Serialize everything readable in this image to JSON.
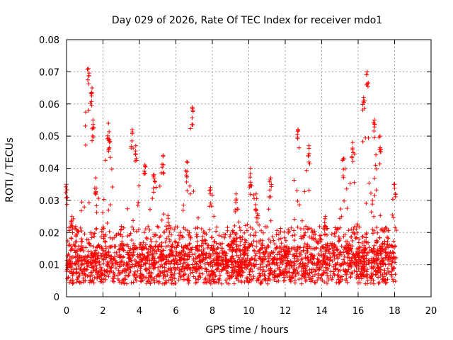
{
  "chart_data": {
    "type": "scatter",
    "title": "Day 029 of 2026, Rate Of TEC Index for receiver mdo1",
    "xlabel": "GPS time / hours",
    "ylabel": "ROTI / TECUs",
    "xlim": [
      0,
      20
    ],
    "ylim": [
      0,
      0.08
    ],
    "x_ticks": [
      "0",
      "2",
      "4",
      "6",
      "8",
      "10",
      "12",
      "14",
      "16",
      "18",
      "20"
    ],
    "y_ticks": [
      "0",
      "0.01",
      "0.02",
      "0.03",
      "0.04",
      "0.05",
      "0.06",
      "0.07",
      "0.08"
    ],
    "grid": true,
    "marker": "+",
    "color": "#ff0000",
    "data_range_hours": [
      0,
      18.1
    ],
    "baseline_roti": 0.01,
    "peaks": [
      {
        "x": 0.0,
        "y": 0.035
      },
      {
        "x": 0.3,
        "y": 0.025
      },
      {
        "x": 1.2,
        "y": 0.071
      },
      {
        "x": 1.4,
        "y": 0.065
      },
      {
        "x": 1.45,
        "y": 0.055
      },
      {
        "x": 1.6,
        "y": 0.037
      },
      {
        "x": 2.3,
        "y": 0.054
      },
      {
        "x": 2.35,
        "y": 0.049
      },
      {
        "x": 3.6,
        "y": 0.052
      },
      {
        "x": 3.8,
        "y": 0.047
      },
      {
        "x": 4.3,
        "y": 0.041
      },
      {
        "x": 4.8,
        "y": 0.038
      },
      {
        "x": 5.3,
        "y": 0.044
      },
      {
        "x": 6.6,
        "y": 0.042
      },
      {
        "x": 6.9,
        "y": 0.059
      },
      {
        "x": 7.9,
        "y": 0.034
      },
      {
        "x": 9.3,
        "y": 0.032
      },
      {
        "x": 10.1,
        "y": 0.04
      },
      {
        "x": 10.4,
        "y": 0.032
      },
      {
        "x": 11.2,
        "y": 0.037
      },
      {
        "x": 12.7,
        "y": 0.052
      },
      {
        "x": 13.3,
        "y": 0.047
      },
      {
        "x": 14.2,
        "y": 0.025
      },
      {
        "x": 15.2,
        "y": 0.043
      },
      {
        "x": 15.7,
        "y": 0.048
      },
      {
        "x": 16.3,
        "y": 0.062
      },
      {
        "x": 16.5,
        "y": 0.07
      },
      {
        "x": 16.9,
        "y": 0.055
      },
      {
        "x": 17.2,
        "y": 0.05
      },
      {
        "x": 18.0,
        "y": 0.035
      }
    ]
  }
}
